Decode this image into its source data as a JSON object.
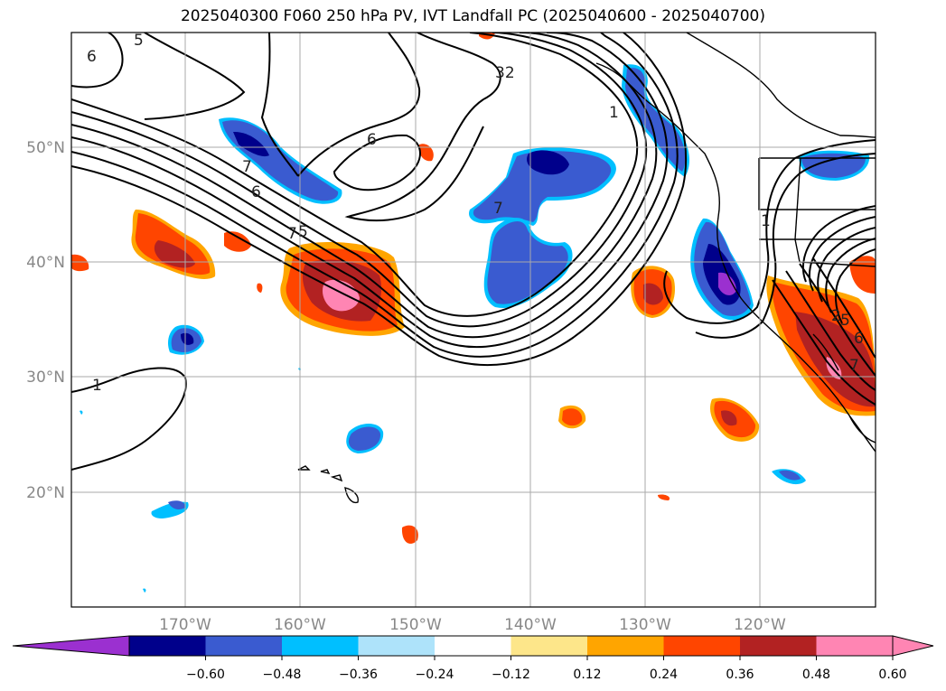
{
  "title": "2025040300 F060 250 hPa PV, IVT Landfall PC (2025040600 - 2025040700)",
  "lat_ticks": [
    "50°N",
    "40°N",
    "30°N",
    "20°N"
  ],
  "lon_ticks": [
    "170°W",
    "160°W",
    "150°W",
    "140°W",
    "130°W",
    "120°W"
  ],
  "colorbar": {
    "tick_labels": [
      "−0.60",
      "−0.48",
      "−0.36",
      "−0.24",
      "−0.12",
      "0.12",
      "0.24",
      "0.36",
      "0.48",
      "0.60"
    ],
    "colors": [
      "#9b30d0",
      "#00008b",
      "#3a5bd0",
      "#00bfff",
      "#aee3fa",
      "#ffffff",
      "#fde68a",
      "#ffa500",
      "#ff4500",
      "#b22222",
      "#ff85b3",
      "#ff85b3"
    ]
  },
  "contour_labels": [
    "5",
    "6",
    "7",
    "6",
    "7",
    "5",
    "32",
    "1",
    "7",
    "1",
    "1",
    "2",
    "5",
    "6",
    "7"
  ],
  "colors": {
    "negative_dark": "#00008b",
    "negative_mid": "#3a5bd0",
    "negative_light": "#00bfff",
    "positive_light": "#ffa500",
    "positive_mid": "#ff4500",
    "positive_dark": "#b22222",
    "positive_max": "#ff85b3"
  }
}
